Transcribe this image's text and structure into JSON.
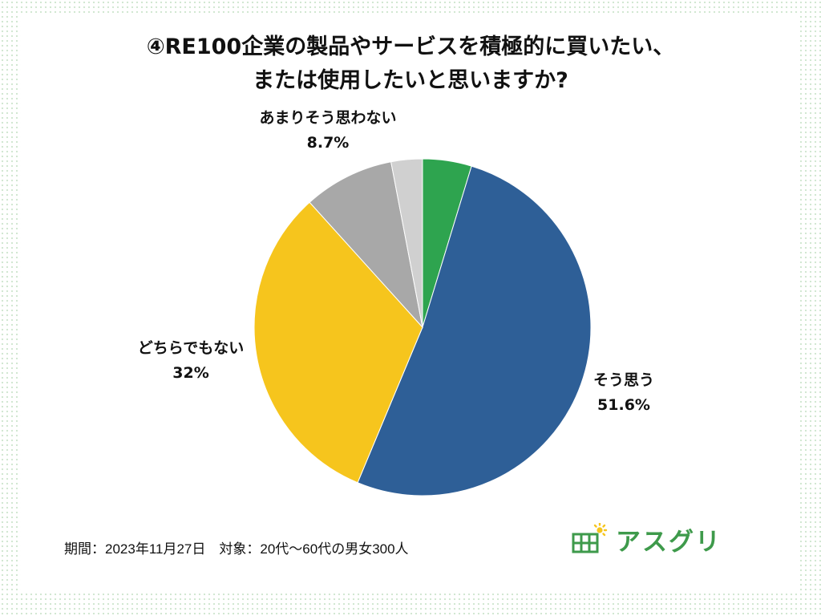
{
  "title_lines": [
    "④RE100企業の製品やサービスを積極的に買いたい、",
    "または使用したいと思いますか?"
  ],
  "chart_data": {
    "type": "pie",
    "start": "12 o'clock",
    "direction": "clockwise",
    "slices": [
      {
        "label": "",
        "value": 4.7,
        "value_label": "",
        "color": "#2ea44f"
      },
      {
        "label": "そう思う",
        "value": 51.6,
        "value_label": "51.6%",
        "color": "#2e5f97"
      },
      {
        "label": "どちらでもない",
        "value": 32,
        "value_label": "32%",
        "color": "#f6c51d"
      },
      {
        "label": "あまりそう思わない",
        "value": 8.7,
        "value_label": "8.7%",
        "color": "#a8a8a8"
      },
      {
        "label": "",
        "value": 3.0,
        "value_label": "",
        "color": "#d0d0d0"
      }
    ]
  },
  "footer": {
    "note": "期間：2023年11月27日　対象：20代〜60代の男女300人"
  },
  "brand": {
    "name": "アスグリ",
    "color": "#3e9a4b"
  }
}
